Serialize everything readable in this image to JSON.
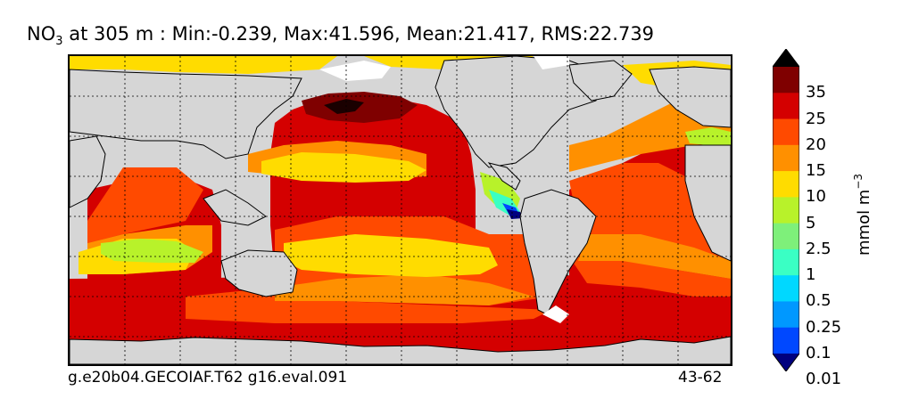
{
  "title": {
    "variable": "NO",
    "subscript": "3",
    "rest": " at 305 m : Min:-0.239, Max:41.596, Mean:21.417, RMS:22.739"
  },
  "footer": {
    "left": "g.e20b04.GECOIAF.T62 g16.eval.091",
    "right": "43-62"
  },
  "colorbar": {
    "units": "mmol m",
    "units_exponent": "−3",
    "levels": [
      "35",
      "25",
      "20",
      "15",
      "10",
      "5",
      "2.5",
      "1",
      "0.5",
      "0.25",
      "0.1",
      "0.01"
    ],
    "colors_top_to_bottom": [
      "#7f0000",
      "#d40000",
      "#ff4a00",
      "#ff9000",
      "#ffdc00",
      "#b8f22a",
      "#7ef07a",
      "#3affc4",
      "#00d8ff",
      "#0098ff",
      "#0048ff",
      "#0000d8",
      "#00007f"
    ]
  },
  "map": {
    "land_color": "#d6d6d6",
    "ice_color": "#ffffff",
    "grid": "dashed"
  }
}
